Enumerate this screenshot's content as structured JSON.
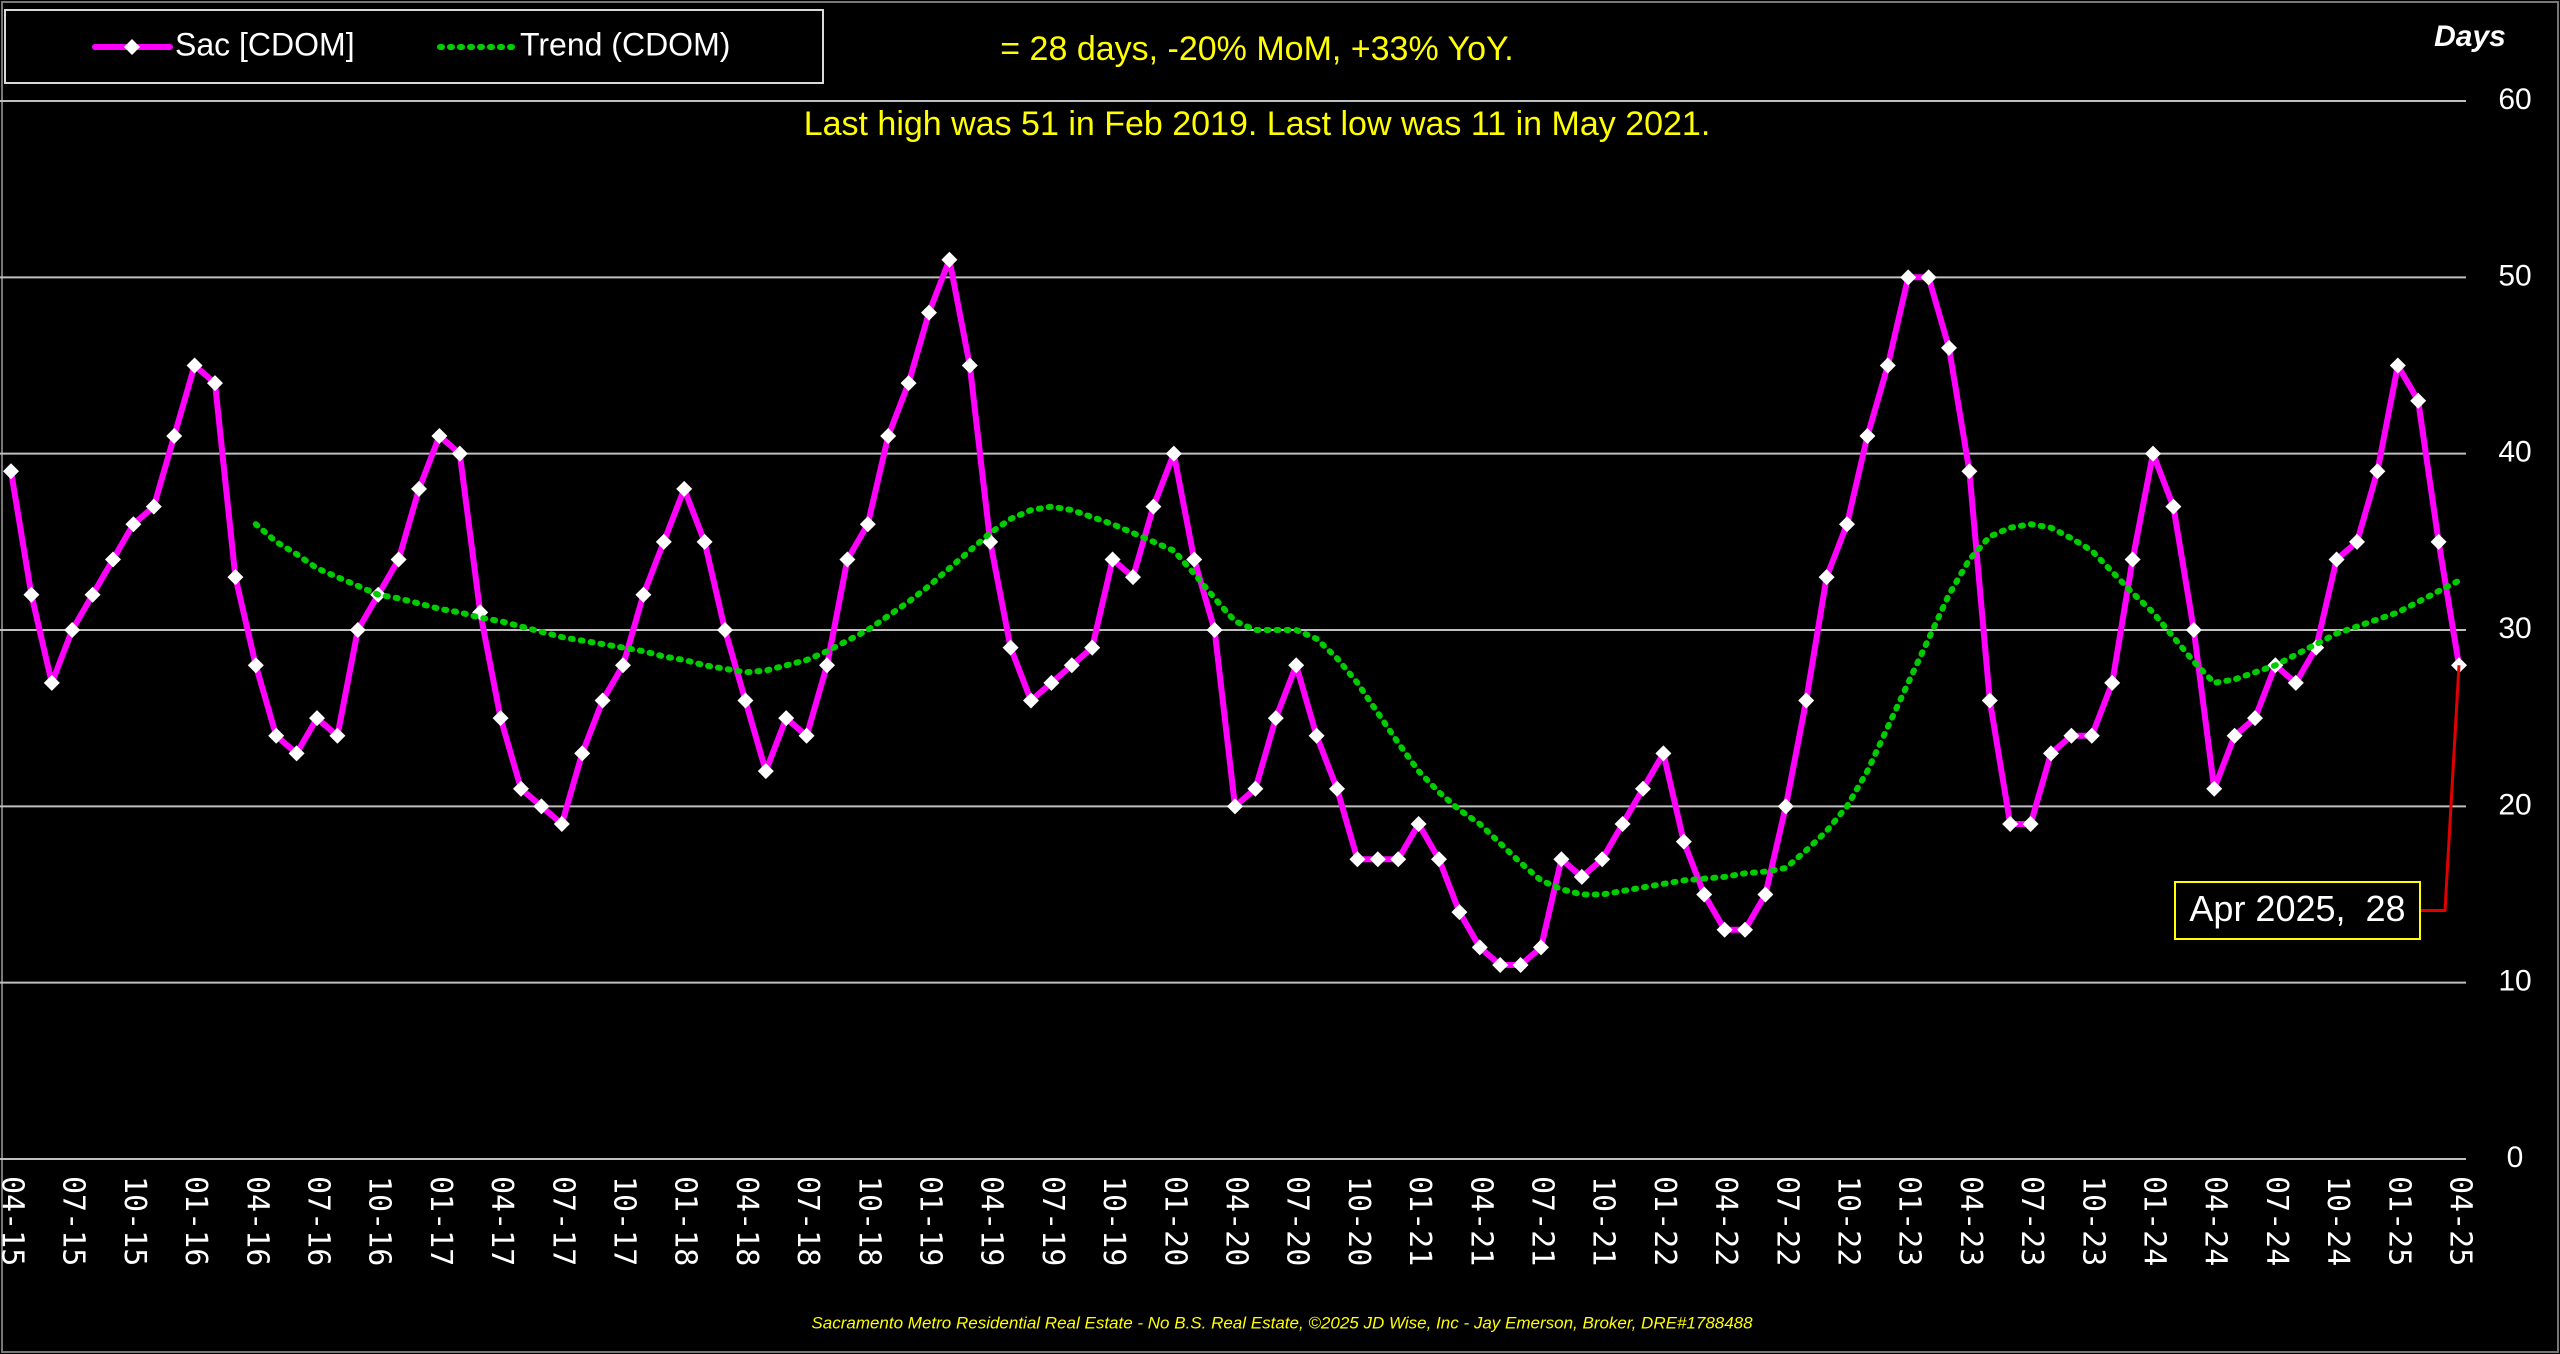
{
  "chart_data": {
    "type": "line",
    "subtitle": "= 28 days, -20% MoM, +33% YoY.",
    "note": "Last high was 51 in Feb 2019. Last low was 11 in May 2021.",
    "y_label": "Days",
    "footer": "Sacramento Metro Residential Real Estate - No B.S. Real Estate, ©2025 JD Wise, Inc - Jay Emerson, Broker, DRE#1788488",
    "annotation": "Apr 2025,  28",
    "legend": "top-left",
    "grid": true,
    "ylim": [
      0,
      60
    ],
    "yticks": [
      0,
      10,
      20,
      30,
      40,
      50,
      60
    ],
    "categories": [
      "04-15",
      null,
      null,
      "07-15",
      null,
      null,
      "10-15",
      null,
      null,
      "01-16",
      null,
      null,
      "04-16",
      null,
      null,
      "07-16",
      null,
      null,
      "10-16",
      null,
      null,
      "01-17",
      null,
      null,
      "04-17",
      null,
      null,
      "07-17",
      null,
      null,
      "10-17",
      null,
      null,
      "01-18",
      null,
      null,
      "04-18",
      null,
      null,
      "07-18",
      null,
      null,
      "10-18",
      null,
      null,
      "01-19",
      null,
      null,
      "04-19",
      null,
      null,
      "07-19",
      null,
      null,
      "10-19",
      null,
      null,
      "01-20",
      null,
      null,
      "04-20",
      null,
      null,
      "07-20",
      null,
      null,
      "10-20",
      null,
      null,
      "01-21",
      null,
      null,
      "04-21",
      null,
      null,
      "07-21",
      null,
      null,
      "10-21",
      null,
      null,
      "01-22",
      null,
      null,
      "04-22",
      null,
      null,
      "07-22",
      null,
      null,
      "10-22",
      null,
      null,
      "01-23",
      null,
      null,
      "04-23",
      null,
      null,
      "07-23",
      null,
      null,
      "10-23",
      null,
      null,
      "01-24",
      null,
      null,
      "04-24",
      null,
      null,
      "07-24",
      null,
      null,
      "10-24",
      null,
      null,
      "01-25",
      null,
      null,
      "04-25"
    ],
    "series": [
      {
        "name": "Sac [CDOM]",
        "color": "#ff00ff",
        "style": "solid-marker",
        "values": [
          39,
          32,
          27,
          30,
          32,
          34,
          36,
          37,
          41,
          45,
          44,
          33,
          28,
          24,
          23,
          25,
          24,
          30,
          32,
          34,
          38,
          41,
          40,
          31,
          25,
          21,
          20,
          19,
          23,
          26,
          28,
          32,
          35,
          38,
          35,
          30,
          26,
          22,
          25,
          24,
          28,
          34,
          36,
          41,
          44,
          48,
          51,
          45,
          35,
          29,
          26,
          27,
          28,
          29,
          34,
          33,
          37,
          40,
          34,
          30,
          20,
          21,
          25,
          28,
          24,
          21,
          17,
          17,
          17,
          19,
          17,
          14,
          12,
          11,
          11,
          12,
          17,
          16,
          17,
          19,
          21,
          23,
          18,
          15,
          13,
          13,
          15,
          20,
          26,
          33,
          36,
          41,
          45,
          50,
          50,
          46,
          39,
          26,
          19,
          19,
          23,
          24,
          24,
          27,
          34,
          40,
          37,
          30,
          21,
          24,
          25,
          28,
          27,
          29,
          34,
          35,
          39,
          45,
          43,
          35,
          28
        ]
      },
      {
        "name": "Trend (CDOM)",
        "color": "#00cc00",
        "style": "dotted",
        "values": [
          null,
          null,
          null,
          null,
          null,
          null,
          null,
          null,
          null,
          null,
          null,
          null,
          36.0,
          35.0,
          34.3,
          33.5,
          33.0,
          32.5,
          32.0,
          31.8,
          31.5,
          31.2,
          31.0,
          30.7,
          30.5,
          30.2,
          29.9,
          29.6,
          29.4,
          29.2,
          29.0,
          28.8,
          28.5,
          28.3,
          28.0,
          27.8,
          27.6,
          27.7,
          28.0,
          28.3,
          28.8,
          29.4,
          30.0,
          30.8,
          31.6,
          32.5,
          33.5,
          34.5,
          35.5,
          36.3,
          36.8,
          37.0,
          36.8,
          36.4,
          36.0,
          35.5,
          35.0,
          34.5,
          33.2,
          31.8,
          30.5,
          30.0,
          30.0,
          30.0,
          29.5,
          28.4,
          27.0,
          25.3,
          23.6,
          22.0,
          20.8,
          19.8,
          19.0,
          17.9,
          16.8,
          15.8,
          15.3,
          15.0,
          15.0,
          15.2,
          15.4,
          15.6,
          15.8,
          15.9,
          16.0,
          16.2,
          16.3,
          16.5,
          17.5,
          18.6,
          20.0,
          22.0,
          24.5,
          27.0,
          29.5,
          32.0,
          34.0,
          35.3,
          35.8,
          36.0,
          35.8,
          35.2,
          34.5,
          33.3,
          32.1,
          31.0,
          29.6,
          28.2,
          27.0,
          27.2,
          27.6,
          28.0,
          28.6,
          29.2,
          29.8,
          30.2,
          30.6,
          31.0,
          31.6,
          32.2,
          32.8
        ]
      }
    ]
  }
}
